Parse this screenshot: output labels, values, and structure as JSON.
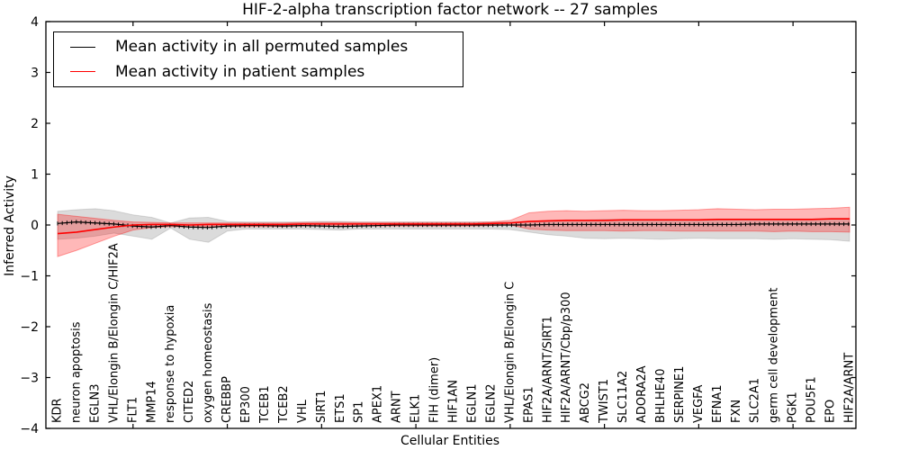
{
  "figure": {
    "title": "HIF-2-alpha transcription factor network -- 27 samples",
    "xlabel": "Cellular Entities",
    "ylabel": "Inferred Activity",
    "legend": [
      {
        "label": "Mean activity in all permuted samples",
        "color": "#000000"
      },
      {
        "label": "Mean activity in patient samples",
        "color": "#ff0000"
      }
    ]
  },
  "chart_data": {
    "type": "line",
    "title": "HIF-2-alpha transcription factor network -- 27 samples",
    "xlabel": "Cellular Entities",
    "ylabel": "Inferred Activity",
    "ylim": [
      -4,
      4
    ],
    "grid": false,
    "legend_position": "upper left",
    "yticks": [
      4,
      3,
      2,
      1,
      0,
      -1,
      -2,
      -3,
      -4
    ],
    "ytick_labels": [
      "4",
      "3",
      "2",
      "1",
      "0",
      "−1",
      "−2",
      "−3",
      "−4"
    ],
    "x_major_tick_values": [
      5,
      10,
      15,
      20,
      25,
      30,
      35,
      40
    ],
    "categories": [
      "KDR",
      "neuron apoptosis",
      "EGLN3",
      "VHL/Elongin B/Elongin C/HIF2A",
      "FLT1",
      "MMP14",
      "response to hypoxia",
      "CITED2",
      "oxygen homeostasis",
      "CREBBP",
      "EP300",
      "TCEB1",
      "TCEB2",
      "VHL",
      "SIRT1",
      "ETS1",
      "SP1",
      "APEX1",
      "ARNT",
      "ELK1",
      "FIH (dimer)",
      "HIF1AN",
      "EGLN1",
      "EGLN2",
      "VHL/Elongin B/Elongin C",
      "EPAS1",
      "HIF2A/ARNT/SIRT1",
      "HIF2A/ARNT/Cbp/p300",
      "ABCG2",
      "TWIST1",
      "SLC11A2",
      "ADORA2A",
      "BHLHE40",
      "SERPINE1",
      "VEGFA",
      "EFNA1",
      "FXN",
      "SLC2A1",
      "germ cell development",
      "PGK1",
      "POU5F1",
      "EPO",
      "HIF2A/ARNT"
    ],
    "series": [
      {
        "name": "Mean activity in all permuted samples",
        "color": "#000000",
        "band_fill": "rgba(0,0,0,0.14)",
        "band_stroke": "rgba(0,0,0,0.12)",
        "values": [
          0.03,
          0.06,
          0.04,
          0.02,
          -0.02,
          -0.04,
          -0.01,
          -0.04,
          -0.05,
          -0.02,
          -0.01,
          -0.01,
          -0.02,
          -0.01,
          -0.02,
          -0.03,
          -0.02,
          -0.01,
          0.0,
          0.0,
          0.0,
          0.0,
          0.0,
          0.0,
          0.0,
          0.0,
          0.01,
          0.01,
          0.01,
          0.01,
          0.01,
          0.01,
          0.01,
          0.01,
          0.01,
          0.01,
          0.01,
          0.02,
          0.02,
          0.02,
          0.02,
          0.02,
          0.02
        ],
        "band_upper": [
          0.27,
          0.3,
          0.32,
          0.28,
          0.2,
          0.15,
          0.04,
          0.14,
          0.15,
          0.07,
          0.06,
          0.06,
          0.06,
          0.06,
          0.07,
          0.07,
          0.06,
          0.06,
          0.06,
          0.06,
          0.06,
          0.06,
          0.06,
          0.06,
          0.06,
          0.07,
          0.09,
          0.1,
          0.1,
          0.11,
          0.11,
          0.11,
          0.11,
          0.11,
          0.11,
          0.12,
          0.12,
          0.12,
          0.12,
          0.12,
          0.12,
          0.13,
          0.13
        ],
        "band_lower": [
          -0.28,
          -0.26,
          -0.22,
          -0.16,
          -0.22,
          -0.28,
          -0.06,
          -0.28,
          -0.34,
          -0.12,
          -0.08,
          -0.08,
          -0.08,
          -0.08,
          -0.09,
          -0.1,
          -0.08,
          -0.08,
          -0.08,
          -0.08,
          -0.08,
          -0.08,
          -0.08,
          -0.08,
          -0.09,
          -0.14,
          -0.19,
          -0.22,
          -0.26,
          -0.27,
          -0.26,
          -0.27,
          -0.28,
          -0.27,
          -0.26,
          -0.27,
          -0.27,
          -0.27,
          -0.28,
          -0.27,
          -0.28,
          -0.29,
          -0.32
        ]
      },
      {
        "name": "Mean activity in patient samples",
        "color": "#ff0000",
        "band_fill": "rgba(255,0,0,0.28)",
        "band_stroke": "rgba(255,0,0,0.35)",
        "values": [
          -0.17,
          -0.14,
          -0.09,
          -0.04,
          0.0,
          0.01,
          0.01,
          0.0,
          0.01,
          0.01,
          0.01,
          0.01,
          0.01,
          0.02,
          0.02,
          0.02,
          0.02,
          0.02,
          0.02,
          0.02,
          0.02,
          0.02,
          0.02,
          0.03,
          0.04,
          0.07,
          0.08,
          0.09,
          0.09,
          0.09,
          0.1,
          0.1,
          0.1,
          0.1,
          0.1,
          0.11,
          0.11,
          0.11,
          0.11,
          0.11,
          0.11,
          0.12,
          0.12
        ],
        "band_upper": [
          0.21,
          0.17,
          0.13,
          0.09,
          0.06,
          0.05,
          0.04,
          0.04,
          0.04,
          0.04,
          0.04,
          0.04,
          0.04,
          0.05,
          0.05,
          0.05,
          0.05,
          0.05,
          0.05,
          0.05,
          0.05,
          0.05,
          0.05,
          0.06,
          0.09,
          0.24,
          0.27,
          0.28,
          0.27,
          0.28,
          0.29,
          0.28,
          0.28,
          0.29,
          0.3,
          0.32,
          0.31,
          0.3,
          0.31,
          0.31,
          0.32,
          0.33,
          0.35
        ],
        "band_lower": [
          -0.62,
          -0.5,
          -0.36,
          -0.22,
          -0.1,
          -0.05,
          -0.03,
          -0.04,
          -0.04,
          -0.03,
          -0.03,
          -0.03,
          -0.03,
          -0.02,
          -0.02,
          -0.02,
          -0.02,
          -0.02,
          -0.02,
          -0.02,
          -0.02,
          -0.02,
          -0.02,
          -0.01,
          0.0,
          -0.08,
          -0.1,
          -0.11,
          -0.11,
          -0.11,
          -0.12,
          -0.11,
          -0.11,
          -0.12,
          -0.12,
          -0.12,
          -0.12,
          -0.12,
          -0.13,
          -0.12,
          -0.13,
          -0.13,
          -0.14
        ]
      }
    ]
  }
}
